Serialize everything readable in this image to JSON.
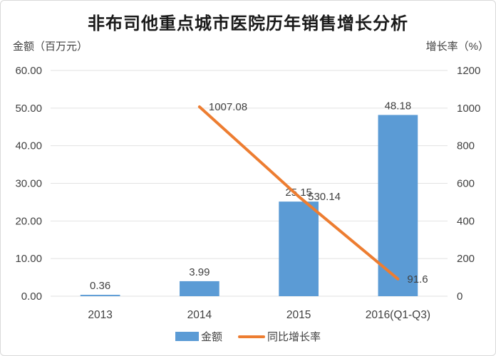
{
  "chart_data": {
    "type": "bar+line combo",
    "title": "非布司他重点城市医院历年销售增长分析",
    "categories": [
      "2013",
      "2014",
      "2015",
      "2016(Q1-Q3)"
    ],
    "series": [
      {
        "name": "金额",
        "type": "bar",
        "axis": "left",
        "color": "#5B9BD5",
        "values": [
          0.36,
          3.99,
          25.15,
          48.18
        ],
        "labels": [
          "0.36",
          "3.99",
          "25.15",
          "48.18"
        ]
      },
      {
        "name": "同比增长率",
        "type": "line",
        "axis": "right",
        "color": "#ED7D31",
        "values": [
          null,
          1007.08,
          530.14,
          91.6
        ],
        "labels": [
          null,
          "1007.08",
          "530.14",
          "91.6"
        ]
      }
    ],
    "left_axis": {
      "title": "金额（百万元）",
      "min": 0,
      "max": 60,
      "ticks": [
        "60.00",
        "50.00",
        "40.00",
        "30.00",
        "20.00",
        "10.00",
        "0.00"
      ]
    },
    "right_axis": {
      "title": "增长率（%）",
      "min": 0,
      "max": 1200,
      "ticks": [
        "1200",
        "1000",
        "800",
        "600",
        "400",
        "200",
        "0"
      ]
    },
    "grid": true,
    "legend_position": "bottom"
  },
  "style": {
    "grid_color": "#e2e2e2",
    "text_color": "#404040",
    "title_color": "#1a1a1a",
    "bar_color": "#5B9BD5",
    "line_color": "#ED7D31"
  }
}
